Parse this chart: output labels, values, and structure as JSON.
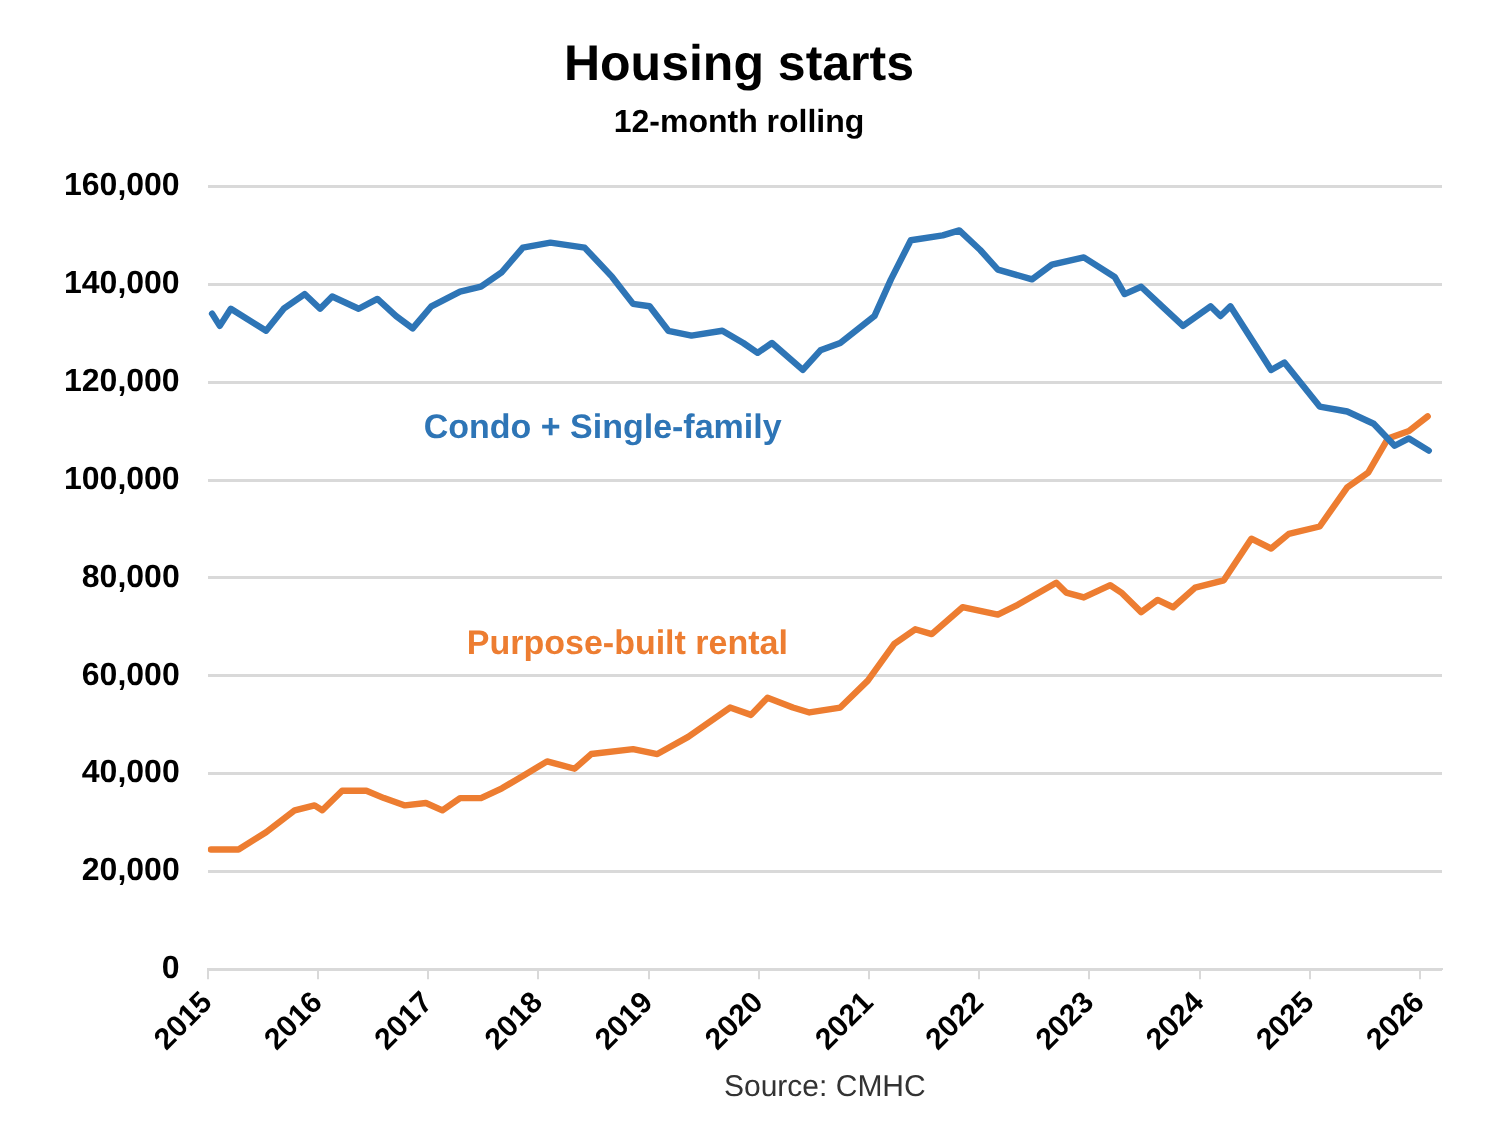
{
  "chart_data": {
    "type": "line",
    "title": "Housing starts",
    "subtitle": "12-month rolling",
    "xlim": [
      2015,
      2026.2
    ],
    "xticks": [
      2015,
      2016,
      2017,
      2018,
      2019,
      2020,
      2021,
      2022,
      2023,
      2024,
      2025,
      2026
    ],
    "ylim": [
      0,
      160000
    ],
    "yticks": [
      0,
      {
        "value": 20000,
        "label": "20,000"
      },
      {
        "value": 40000,
        "label": "40,000"
      },
      {
        "value": 60000,
        "label": "60,000"
      },
      {
        "value": 80000,
        "label": "80,000"
      },
      {
        "value": 100000,
        "label": "100,000"
      },
      {
        "value": 120000,
        "label": "120,000"
      },
      {
        "value": 140000,
        "label": "140,000"
      },
      {
        "value": 160000,
        "label": "160,000"
      }
    ],
    "grid": "y",
    "legend": false,
    "marker": "none",
    "line_style": "solid",
    "annotations": [
      "Source: CMHC"
    ],
    "series": [
      {
        "name": "Condo + Single-family",
        "color": "#2e75b6",
        "x": [
          2015.04,
          2015.11,
          2015.21,
          2015.53,
          2015.69,
          2015.88,
          2016.02,
          2016.13,
          2016.37,
          2016.54,
          2016.71,
          2016.86,
          2017.03,
          2017.29,
          2017.48,
          2017.67,
          2017.86,
          2018.11,
          2018.42,
          2018.67,
          2018.86,
          2019.01,
          2019.18,
          2019.39,
          2019.67,
          2019.86,
          2019.99,
          2020.12,
          2020.4,
          2020.56,
          2020.74,
          2021.05,
          2021.2,
          2021.38,
          2021.67,
          2021.82,
          2022.01,
          2022.17,
          2022.48,
          2022.66,
          2022.95,
          2023.23,
          2023.32,
          2023.47,
          2023.66,
          2023.85,
          2024.1,
          2024.19,
          2024.28,
          2024.65,
          2024.77,
          2025.09,
          2025.34,
          2025.58,
          2025.77,
          2025.9,
          2026.08
        ],
        "values": [
          134000,
          131500,
          135000,
          130500,
          135000,
          138000,
          135000,
          137500,
          135000,
          137000,
          133500,
          131000,
          135500,
          138500,
          139500,
          142500,
          147500,
          148500,
          147500,
          141500,
          136000,
          135500,
          130500,
          129500,
          130500,
          128000,
          126000,
          128000,
          122500,
          126500,
          128000,
          133500,
          141000,
          149000,
          150000,
          151000,
          147000,
          143000,
          141000,
          144000,
          145500,
          141500,
          138000,
          139500,
          135500,
          131500,
          135500,
          133500,
          135500,
          122500,
          124000,
          115000,
          114000,
          111500,
          107000,
          108500,
          106000
        ]
      },
      {
        "name": "Purpose-built rental",
        "color": "#ed7d31",
        "x": [
          2015.03,
          2015.28,
          2015.53,
          2015.79,
          2015.97,
          2016.04,
          2016.22,
          2016.44,
          2016.6,
          2016.79,
          2016.98,
          2017.13,
          2017.29,
          2017.48,
          2017.67,
          2017.86,
          2018.08,
          2018.33,
          2018.48,
          2018.86,
          2019.08,
          2019.36,
          2019.74,
          2019.93,
          2020.08,
          2020.31,
          2020.46,
          2020.74,
          2020.99,
          2021.23,
          2021.42,
          2021.57,
          2021.85,
          2022.17,
          2022.35,
          2022.7,
          2022.79,
          2022.95,
          2023.19,
          2023.29,
          2023.47,
          2023.62,
          2023.76,
          2023.96,
          2024.22,
          2024.47,
          2024.65,
          2024.81,
          2025.09,
          2025.34,
          2025.53,
          2025.71,
          2025.9,
          2026.07
        ],
        "values": [
          24500,
          24500,
          28000,
          32500,
          33500,
          32500,
          36500,
          36500,
          35000,
          33500,
          34000,
          32500,
          35000,
          35000,
          37000,
          39500,
          42500,
          41000,
          44000,
          45000,
          44000,
          47500,
          53500,
          52000,
          55500,
          53500,
          52500,
          53500,
          59000,
          66500,
          69500,
          68500,
          74000,
          72500,
          74500,
          79000,
          77000,
          76000,
          78500,
          77000,
          73000,
          75500,
          74000,
          78000,
          79500,
          88000,
          86000,
          89000,
          90500,
          98500,
          101500,
          108500,
          110000,
          113000
        ]
      }
    ]
  }
}
